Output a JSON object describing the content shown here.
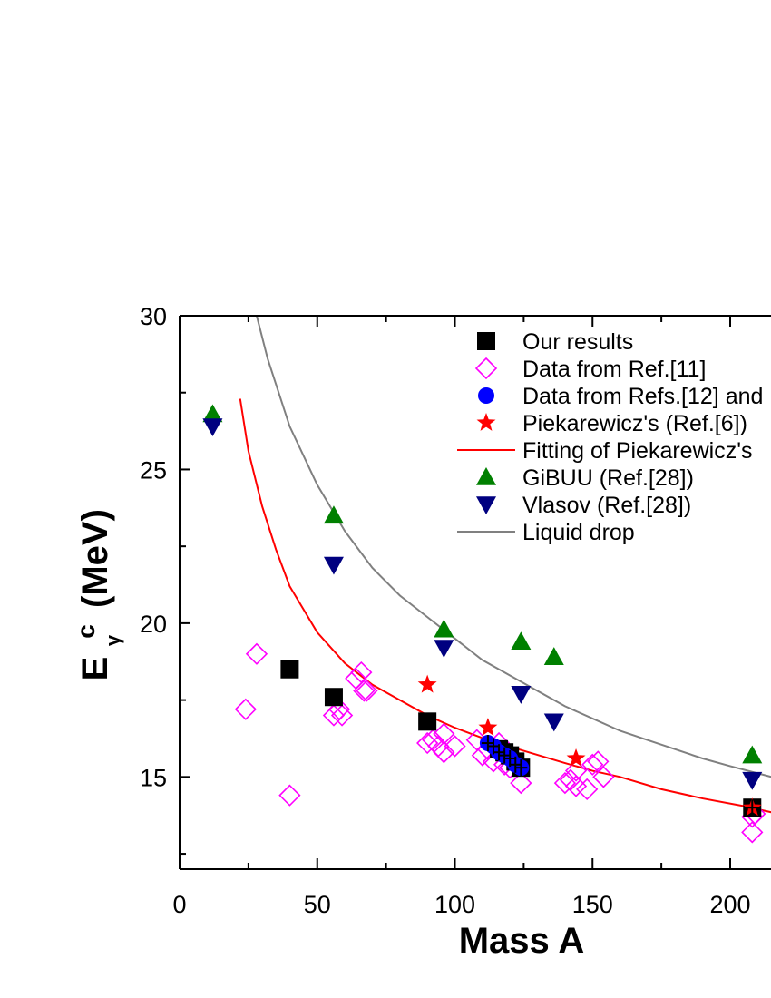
{
  "chart_data": {
    "type": "scatter",
    "xlabel": "Mass A",
    "ylabel": {
      "main": "E",
      "sub": "γ",
      "sup": "c",
      "unit": "(MeV)"
    },
    "xlim": [
      0,
      215
    ],
    "ylim": [
      12,
      30
    ],
    "x_ticks": [
      "0",
      "50",
      "100",
      "150",
      "200"
    ],
    "y_ticks": [
      "15",
      "20",
      "25",
      "30"
    ],
    "grid": false,
    "legend_position": "top-right",
    "colors": {
      "our_results": "#000000",
      "ref11": "#ff00ff",
      "refs12": "#0000ff",
      "piekarewicz": "#ff0000",
      "fit": "#ff0000",
      "gibuu": "#008000",
      "vlasov": "#000080",
      "liquid_drop": "#808080"
    },
    "series": [
      {
        "name": "Our results",
        "marker": "square",
        "color_key": "our_results",
        "points": [
          [
            40,
            18.5
          ],
          [
            56,
            17.6
          ],
          [
            90,
            16.8
          ],
          [
            116,
            15.9
          ],
          [
            118,
            15.8
          ],
          [
            120,
            15.7
          ],
          [
            122,
            15.5
          ],
          [
            124,
            15.3
          ],
          [
            208,
            14.0
          ]
        ]
      },
      {
        "name": "Data from Ref.[11]",
        "marker": "diamond-open",
        "color_key": "ref11",
        "points": [
          [
            24,
            17.2
          ],
          [
            28,
            19.0
          ],
          [
            40,
            14.4
          ],
          [
            56,
            17.0
          ],
          [
            58,
            17.2
          ],
          [
            59,
            17.0
          ],
          [
            64,
            18.2
          ],
          [
            66,
            18.4
          ],
          [
            67,
            17.8
          ],
          [
            68,
            17.8
          ],
          [
            90,
            16.1
          ],
          [
            92,
            16.2
          ],
          [
            94,
            16.0
          ],
          [
            96,
            15.8
          ],
          [
            96,
            16.4
          ],
          [
            100,
            16.0
          ],
          [
            108,
            16.2
          ],
          [
            110,
            15.7
          ],
          [
            112,
            15.9
          ],
          [
            114,
            15.5
          ],
          [
            116,
            16.1
          ],
          [
            118,
            15.4
          ],
          [
            120,
            15.3
          ],
          [
            124,
            14.8
          ],
          [
            140,
            14.8
          ],
          [
            142,
            14.9
          ],
          [
            144,
            14.7
          ],
          [
            144,
            15.2
          ],
          [
            148,
            14.6
          ],
          [
            150,
            15.4
          ],
          [
            152,
            15.5
          ],
          [
            154,
            15.0
          ],
          [
            208,
            13.2
          ],
          [
            208,
            13.7
          ],
          [
            209,
            13.8
          ]
        ]
      },
      {
        "name": "Data from Refs.[12] and",
        "marker": "circle",
        "color_key": "refs12",
        "points": [
          [
            112,
            16.1
          ],
          [
            114,
            16.0
          ],
          [
            116,
            15.8
          ],
          [
            118,
            15.7
          ],
          [
            120,
            15.6
          ],
          [
            122,
            15.4
          ],
          [
            124,
            15.3
          ]
        ]
      },
      {
        "name": "Piekarewicz's (Ref.[6])",
        "marker": "star",
        "color_key": "piekarewicz",
        "points": [
          [
            90,
            18.0
          ],
          [
            112,
            16.6
          ],
          [
            144,
            15.6
          ],
          [
            208,
            14.0
          ]
        ]
      },
      {
        "name": "Fitting of Piekarewicz's",
        "marker": "line",
        "color_key": "fit",
        "points": [
          [
            22,
            27.3
          ],
          [
            25,
            25.6
          ],
          [
            30,
            23.8
          ],
          [
            35,
            22.4
          ],
          [
            40,
            21.2
          ],
          [
            50,
            19.7
          ],
          [
            60,
            18.7
          ],
          [
            70,
            18.0
          ],
          [
            80,
            17.5
          ],
          [
            90,
            17.0
          ],
          [
            100,
            16.6
          ],
          [
            112,
            16.2
          ],
          [
            125,
            15.85
          ],
          [
            140,
            15.45
          ],
          [
            150,
            15.2
          ],
          [
            160,
            15.0
          ],
          [
            175,
            14.6
          ],
          [
            190,
            14.3
          ],
          [
            205,
            14.05
          ],
          [
            215,
            13.85
          ]
        ]
      },
      {
        "name": "GiBUU (Ref.[28])",
        "marker": "triangle-up",
        "color_key": "gibuu",
        "points": [
          [
            12,
            26.8
          ],
          [
            56,
            23.5
          ],
          [
            96,
            19.8
          ],
          [
            124,
            19.4
          ],
          [
            136,
            18.9
          ],
          [
            208,
            15.7
          ]
        ]
      },
      {
        "name": "Vlasov (Ref.[28])",
        "marker": "triangle-down",
        "color_key": "vlasov",
        "points": [
          [
            12,
            26.4
          ],
          [
            56,
            21.9
          ],
          [
            96,
            19.2
          ],
          [
            124,
            17.7
          ],
          [
            136,
            16.8
          ],
          [
            208,
            14.9
          ]
        ]
      },
      {
        "name": "Liquid drop",
        "marker": "line",
        "color_key": "liquid_drop",
        "points": [
          [
            28,
            30.0
          ],
          [
            32,
            28.6
          ],
          [
            40,
            26.4
          ],
          [
            50,
            24.5
          ],
          [
            60,
            23.0
          ],
          [
            70,
            21.8
          ],
          [
            80,
            20.9
          ],
          [
            90,
            20.2
          ],
          [
            100,
            19.5
          ],
          [
            110,
            18.8
          ],
          [
            120,
            18.3
          ],
          [
            130,
            17.8
          ],
          [
            140,
            17.3
          ],
          [
            150,
            16.9
          ],
          [
            160,
            16.5
          ],
          [
            170,
            16.2
          ],
          [
            180,
            15.9
          ],
          [
            190,
            15.6
          ],
          [
            200,
            15.35
          ],
          [
            215,
            15.0
          ]
        ]
      }
    ]
  }
}
